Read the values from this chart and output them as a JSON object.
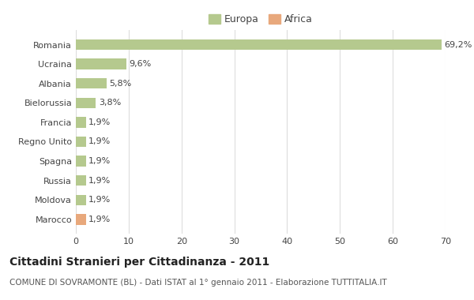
{
  "categories": [
    "Romania",
    "Ucraina",
    "Albania",
    "Bielorussia",
    "Francia",
    "Regno Unito",
    "Spagna",
    "Russia",
    "Moldova",
    "Marocco"
  ],
  "values": [
    69.2,
    9.6,
    5.8,
    3.8,
    1.9,
    1.9,
    1.9,
    1.9,
    1.9,
    1.9
  ],
  "labels": [
    "69,2%",
    "9,6%",
    "5,8%",
    "3,8%",
    "1,9%",
    "1,9%",
    "1,9%",
    "1,9%",
    "1,9%",
    "1,9%"
  ],
  "colors": [
    "#b5c98e",
    "#b5c98e",
    "#b5c98e",
    "#b5c98e",
    "#b5c98e",
    "#b5c98e",
    "#b5c98e",
    "#b5c98e",
    "#b5c98e",
    "#e8a87c"
  ],
  "europa_color": "#b5c98e",
  "africa_color": "#e8a87c",
  "xlim": [
    0,
    70
  ],
  "xticks": [
    0,
    10,
    20,
    30,
    40,
    50,
    60,
    70
  ],
  "title": "Cittadini Stranieri per Cittadinanza - 2011",
  "subtitle": "COMUNE DI SOVRAMONTE (BL) - Dati ISTAT al 1° gennaio 2011 - Elaborazione TUTTITALIA.IT",
  "bg_color": "#ffffff",
  "grid_color": "#dddddd",
  "bar_height": 0.55,
  "label_fontsize": 8,
  "ytick_fontsize": 8,
  "xtick_fontsize": 8,
  "legend_fontsize": 9,
  "title_fontsize": 10,
  "subtitle_fontsize": 7.5
}
